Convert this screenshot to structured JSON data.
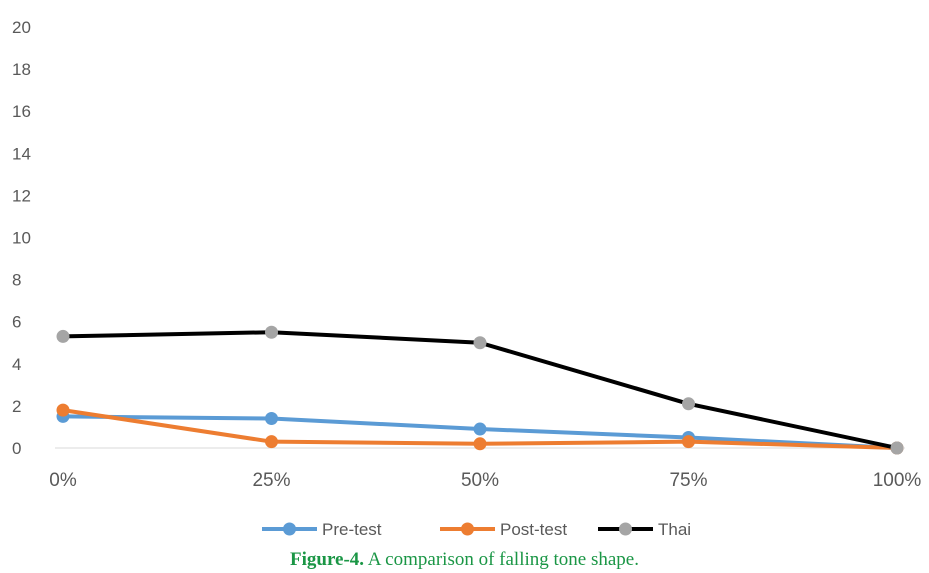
{
  "chart_data": {
    "type": "line",
    "title": "",
    "xlabel": "",
    "ylabel": "",
    "categories": [
      "0%",
      "25%",
      "50%",
      "75%",
      "100%"
    ],
    "ylim": [
      0,
      20
    ],
    "yticks": [
      "0",
      "2",
      "4",
      "6",
      "8",
      "10",
      "12",
      "14",
      "16",
      "18",
      "20"
    ],
    "grid": false,
    "legend_position": "bottom",
    "series": [
      {
        "name": "Pre-test",
        "values": [
          1.5,
          1.4,
          0.9,
          0.5,
          0.0
        ],
        "line_color": "#5b9bd5",
        "marker_color": "#5b9bd5"
      },
      {
        "name": "Post-test",
        "values": [
          1.8,
          0.3,
          0.2,
          0.3,
          0.0
        ],
        "line_color": "#ed7d31",
        "marker_color": "#ed7d31"
      },
      {
        "name": "Thai",
        "values": [
          5.3,
          5.5,
          5.0,
          2.1,
          0.0
        ],
        "line_color": "#000000",
        "marker_color": "#a5a5a5"
      }
    ]
  },
  "caption": {
    "label": "Figure-4.",
    "text": " A comparison of falling tone shape."
  }
}
